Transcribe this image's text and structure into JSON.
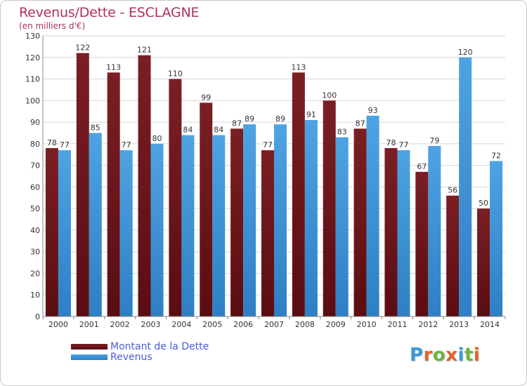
{
  "title": "Revenus/Dette - ESCLAGNE",
  "subtitle": "(en milliers d'€)",
  "logo": {
    "text": "Proxiti",
    "letters": [
      "P",
      "r",
      "o",
      "x",
      "i",
      "t",
      "i"
    ],
    "colors": [
      "#3a9ad9",
      "#e0642a",
      "#6cb33f",
      "#e0642a",
      "#3a9ad9",
      "#6cb33f",
      "#e0642a"
    ]
  },
  "colors": {
    "dette": "#7a1f24",
    "dette_dark": "#5a0d12",
    "revenus": "#4ea3e2",
    "revenus_dark": "#2e7fc4",
    "title": "#b0305a",
    "grid": "#d6d6d6",
    "axis_text": "#333333",
    "legend_text": "#4a5bd6"
  },
  "chart_data": {
    "type": "bar",
    "categories": [
      "2000",
      "2001",
      "2002",
      "2003",
      "2004",
      "2005",
      "2006",
      "2007",
      "2008",
      "2009",
      "2010",
      "2011",
      "2012",
      "2013",
      "2014"
    ],
    "series": [
      {
        "name": "Montant de la Dette",
        "values": [
          78,
          122,
          113,
          121,
          110,
          99,
          87,
          77,
          113,
          100,
          87,
          78,
          67,
          56,
          50
        ]
      },
      {
        "name": "Revenus",
        "values": [
          77,
          85,
          77,
          80,
          84,
          84,
          89,
          89,
          91,
          83,
          93,
          77,
          79,
          120,
          72
        ]
      }
    ],
    "title": "Revenus/Dette - ESCLAGNE",
    "ylabel": "(en milliers d'€)",
    "ylim": [
      0,
      130
    ],
    "yticks": [
      0,
      10,
      20,
      30,
      40,
      50,
      60,
      70,
      80,
      90,
      100,
      110,
      120,
      130
    ],
    "grid": true,
    "legend_position": "bottom-left"
  }
}
